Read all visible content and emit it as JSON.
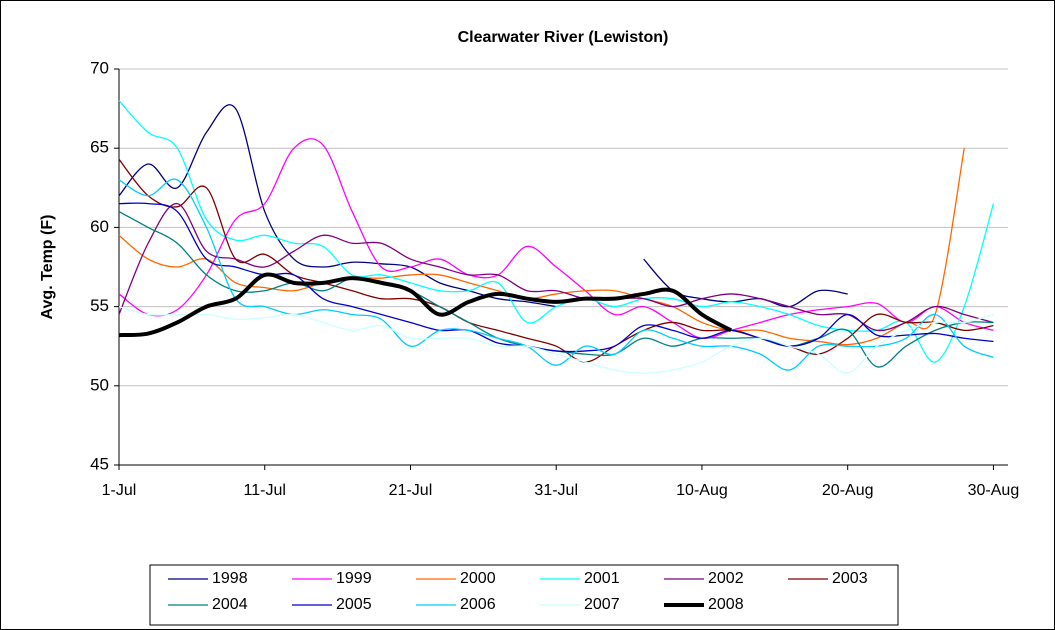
{
  "chart_data": {
    "type": "line",
    "title": "Clearwater River (Lewiston)",
    "y_label": "Avg. Temp (F)",
    "x": [
      0,
      2,
      4,
      6,
      8,
      10,
      12,
      14,
      16,
      18,
      20,
      22,
      24,
      26,
      28,
      30,
      32,
      34,
      36,
      38,
      40,
      42,
      44,
      46,
      48,
      50,
      52,
      54,
      56,
      58,
      60
    ],
    "xlim": [
      0,
      61
    ],
    "xticks": [
      {
        "value": 0,
        "label": "1-Jul"
      },
      {
        "value": 10,
        "label": "11-Jul"
      },
      {
        "value": 20,
        "label": "21-Jul"
      },
      {
        "value": 30,
        "label": "31-Jul"
      },
      {
        "value": 40,
        "label": "10-Aug"
      },
      {
        "value": 50,
        "label": "20-Aug"
      },
      {
        "value": 60,
        "label": "30-Aug"
      }
    ],
    "ylim": [
      45,
      70
    ],
    "yticks": [
      45,
      50,
      55,
      60,
      65,
      70
    ],
    "grid": true,
    "legend": "bottom",
    "series": [
      {
        "name": "1998",
        "color": "#000080",
        "width": 1.3,
        "values": [
          62,
          64,
          62.5,
          66,
          67.5,
          61,
          58,
          57.5,
          57.8,
          57.7,
          57.5,
          56.5,
          56,
          55.5,
          55.3,
          55,
          null,
          null,
          58,
          56,
          55.5,
          55.3,
          55.5,
          55,
          56,
          55.8,
          null,
          null,
          null,
          null,
          null
        ]
      },
      {
        "name": "1999",
        "color": "#ff00ff",
        "width": 1.3,
        "values": [
          55.8,
          54.5,
          54.8,
          57,
          60.5,
          61.5,
          65,
          65.2,
          61,
          57.5,
          57.5,
          58,
          57,
          57,
          58.8,
          57.5,
          56,
          54.5,
          55,
          54,
          53,
          53.5,
          54,
          54.5,
          54.8,
          55,
          55.2,
          54,
          55,
          54,
          53.5
        ]
      },
      {
        "name": "2000",
        "color": "#ff6600",
        "width": 1.3,
        "values": [
          59.5,
          58,
          57.5,
          58,
          56.5,
          56.2,
          56,
          56.5,
          56.8,
          56.8,
          57,
          57,
          56.5,
          56,
          55.5,
          55.8,
          56,
          56,
          55.5,
          55,
          54,
          53.5,
          53.5,
          53,
          52.8,
          52.6,
          53,
          54,
          54.5,
          65,
          null
        ]
      },
      {
        "name": "2001",
        "color": "#00ffff",
        "width": 1.3,
        "values": [
          68,
          66,
          65,
          60.5,
          59.2,
          59.5,
          59,
          58.8,
          57,
          57,
          56.5,
          56,
          56,
          56.5,
          54,
          55,
          55.5,
          55,
          55.5,
          55.5,
          55,
          55.3,
          55,
          54.5,
          53.8,
          53.5,
          53.5,
          54,
          51.5,
          55,
          61.5
        ]
      },
      {
        "name": "2002",
        "color": "#800080",
        "width": 1.3,
        "values": [
          54.5,
          59,
          61.5,
          58.5,
          58,
          57.5,
          58.5,
          59.5,
          59,
          59,
          58,
          57.5,
          57,
          57,
          56,
          56,
          55.5,
          55.5,
          55.5,
          55,
          55.5,
          55.8,
          55.5,
          55,
          54.5,
          54.5,
          53.5,
          54,
          55,
          54.5,
          54
        ]
      },
      {
        "name": "2003",
        "color": "#800000",
        "width": 1.3,
        "values": [
          64.3,
          62,
          61.3,
          62.5,
          58,
          58.3,
          57,
          56.5,
          56,
          55.5,
          55.5,
          55,
          54,
          53.5,
          53,
          52.5,
          51.5,
          52.5,
          53.5,
          54,
          53.5,
          53.5,
          53,
          52.5,
          52,
          53,
          54.5,
          54,
          54,
          53.5,
          53.8
        ]
      },
      {
        "name": "2004",
        "color": "#008080",
        "width": 1.3,
        "values": [
          61,
          60,
          59,
          57,
          56,
          56,
          56.5,
          56,
          56.8,
          56.5,
          56,
          55,
          54,
          53,
          52.5,
          52.2,
          52,
          52,
          53,
          52.5,
          53,
          53,
          53,
          52.5,
          53,
          53.5,
          51.2,
          52.5,
          53.5,
          54,
          54
        ]
      },
      {
        "name": "2005",
        "color": "#0000cc",
        "width": 1.3,
        "values": [
          61.5,
          61.5,
          61,
          58,
          57.5,
          57,
          57,
          55.5,
          55,
          54.5,
          54,
          53.5,
          53.5,
          52.7,
          52.5,
          52.2,
          52.2,
          52.5,
          53.8,
          53.5,
          53,
          53.5,
          53,
          52.5,
          53,
          54.5,
          53.2,
          53.2,
          53.3,
          53,
          52.8
        ]
      },
      {
        "name": "2006",
        "color": "#00ccff",
        "width": 1.3,
        "values": [
          63,
          62,
          63,
          60,
          55.5,
          55,
          54.5,
          54.8,
          54.5,
          54.2,
          52.5,
          53.5,
          53.5,
          53,
          52.5,
          51.3,
          52.5,
          52,
          53.5,
          53,
          52.5,
          52.5,
          52,
          51,
          52.5,
          52.5,
          52.5,
          53,
          54.5,
          52.5,
          51.8
        ]
      },
      {
        "name": "2007",
        "color": "#ccffff",
        "width": 1.3,
        "values": [
          55,
          54.5,
          54.5,
          54.5,
          54.2,
          54.3,
          54.5,
          54,
          53.5,
          53.8,
          53,
          53,
          53,
          52.5,
          52.5,
          52,
          51.5,
          51,
          50.8,
          51,
          51.5,
          52.5,
          53,
          52.5,
          52,
          50.8,
          52.5,
          53.5,
          54,
          54,
          54.5
        ]
      },
      {
        "name": "2008",
        "color": "#000000",
        "width": 4,
        "values": [
          53.2,
          53.3,
          54,
          55,
          55.5,
          57,
          56.5,
          56.5,
          56.8,
          56.5,
          56,
          54.5,
          55.3,
          55.8,
          55.5,
          55.3,
          55.5,
          55.5,
          55.8,
          56,
          54.5,
          53.5,
          null,
          null,
          null,
          null,
          null,
          null,
          null,
          null,
          null
        ]
      }
    ]
  }
}
